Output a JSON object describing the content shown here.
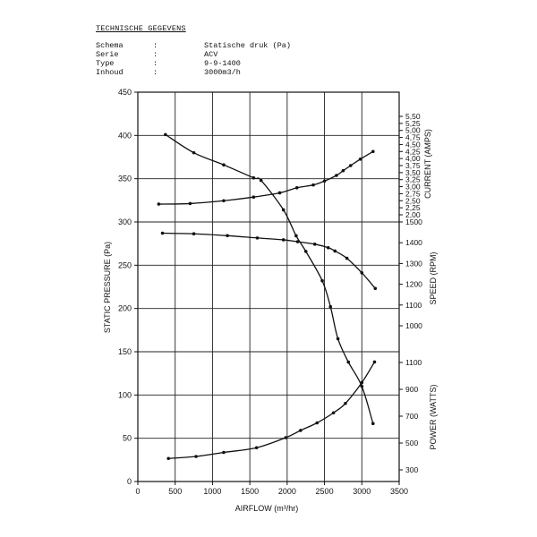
{
  "header": {
    "title": "TECHNISCHE GEGEVENS",
    "specs": [
      {
        "key": "Schema",
        "sep": ":",
        "value": "Statische druk (Pa)"
      },
      {
        "key": "Serie",
        "sep": ":",
        "value": "ACV"
      },
      {
        "key": "Type",
        "sep": ":",
        "value": "9-9-1400"
      },
      {
        "key": "Inhoud",
        "sep": ":",
        "value": "3000m3/h"
      }
    ]
  },
  "chart_data": {
    "type": "line",
    "xlabel": "AIRFLOW (m³/hr)",
    "ylabel_left": "STATIC PRESSURE (Pa)",
    "xlim": [
      0,
      3500
    ],
    "ylim": [
      0,
      450
    ],
    "x_ticks": [
      "0",
      "500",
      "1000",
      "1500",
      "2000",
      "2500",
      "3000",
      "3500"
    ],
    "x_tick_values": [
      0,
      500,
      1000,
      1500,
      2000,
      2500,
      3000,
      3500
    ],
    "y_ticks": [
      "0",
      "50",
      "100",
      "150",
      "200",
      "250",
      "300",
      "350",
      "400",
      "450"
    ],
    "y_tick_values": [
      0,
      50,
      100,
      150,
      200,
      250,
      300,
      350,
      400,
      450
    ],
    "grid": true,
    "right_axes": [
      {
        "label": "CURRENT (AMPS)",
        "range": [
          2.0,
          5.5
        ],
        "tick_values": [
          2.0,
          2.25,
          2.5,
          2.75,
          3.0,
          3.25,
          3.5,
          3.75,
          4.0,
          4.25,
          4.5,
          4.75,
          5.0,
          5.25,
          5.5
        ],
        "ticks": [
          "2,00",
          "2,25",
          "2,50",
          "2,75",
          "3,00",
          "3,25",
          "3,50",
          "3,75",
          "4,00",
          "4,25",
          "4,50",
          "4,75",
          "5,00",
          "5,25",
          "5,50"
        ]
      },
      {
        "label": "SPEED (RPM)",
        "range": [
          1000,
          1500
        ],
        "tick_values": [
          1000,
          1100,
          1200,
          1300,
          1400,
          1500
        ],
        "ticks": [
          "1000",
          "1100",
          "1200",
          "1300",
          "1400",
          "1500"
        ]
      },
      {
        "label": "POWER (WATTS)",
        "range": [
          300,
          1100
        ],
        "tick_values": [
          300,
          500,
          700,
          900,
          1100
        ],
        "ticks": [
          "300",
          "500",
          "700",
          "900",
          "1100"
        ]
      }
    ],
    "series": [
      {
        "name": "Static pressure",
        "axis": "left",
        "x": [
          370,
          750,
          1150,
          1550,
          1650,
          1950,
          2120,
          2250,
          2470,
          2580,
          2680,
          2820,
          3000,
          3150
        ],
        "y": [
          401,
          380,
          366,
          351,
          348,
          314,
          284,
          266,
          232,
          202,
          165,
          138,
          110,
          67
        ]
      },
      {
        "name": "Current",
        "axis": "current",
        "x": [
          280,
          700,
          1150,
          1550,
          1900,
          2130,
          2350,
          2500,
          2660,
          2750,
          2850,
          2980,
          3150
        ],
        "y": [
          2.38,
          2.4,
          2.5,
          2.63,
          2.78,
          2.96,
          3.06,
          3.2,
          3.4,
          3.57,
          3.75,
          3.98,
          4.25
        ]
      },
      {
        "name": "Speed",
        "axis": "speed",
        "x": [
          330,
          750,
          1200,
          1600,
          1950,
          2140,
          2370,
          2550,
          2640,
          2800,
          3000,
          3180
        ],
        "y": [
          1446,
          1443,
          1434,
          1423,
          1414,
          1405,
          1393,
          1376,
          1360,
          1325,
          1255,
          1180
        ]
      },
      {
        "name": "Power",
        "axis": "power",
        "x": [
          410,
          780,
          1150,
          1590,
          1980,
          2180,
          2400,
          2620,
          2780,
          3000,
          3170
        ],
        "y": [
          385,
          400,
          430,
          465,
          540,
          594,
          650,
          725,
          795,
          950,
          1104
        ]
      }
    ]
  }
}
